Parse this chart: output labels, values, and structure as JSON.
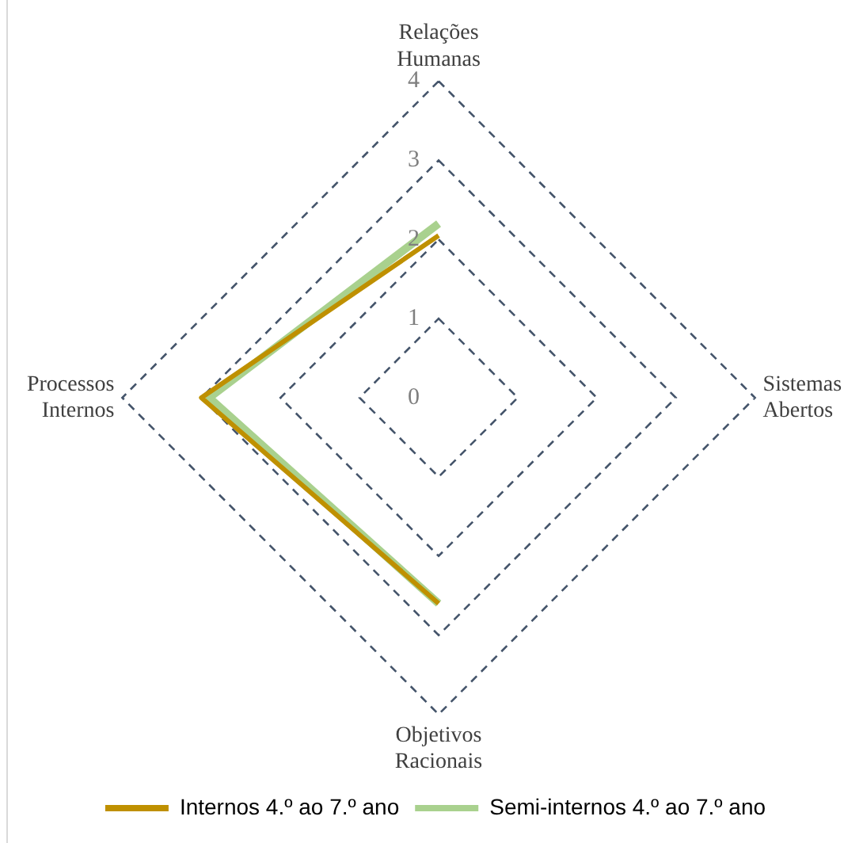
{
  "chart_data": {
    "type": "radar",
    "categories": [
      "Relações Humanas",
      "Sistemas Abertos",
      "Objetivos Racionais",
      "Processos Internos"
    ],
    "series": [
      {
        "name": "Internos 4.º ao 7.º ano",
        "color": "#bf9000",
        "values": [
          2.05,
          null,
          2.6,
          3.0
        ]
      },
      {
        "name": "Semi-internos 4.º ao 7.º ano",
        "color": "#a9d18e",
        "values": [
          2.2,
          null,
          2.6,
          2.9
        ]
      }
    ],
    "ylim": [
      0,
      4
    ],
    "yticks": [
      0,
      1,
      2,
      3,
      4
    ],
    "grid": true,
    "line_style": "dashed",
    "marker": "none",
    "legend": "bottom"
  }
}
